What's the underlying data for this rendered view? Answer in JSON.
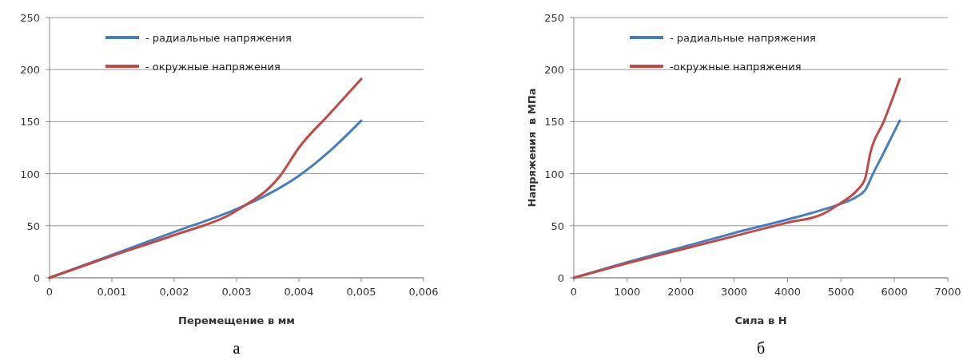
{
  "chart_data": [
    {
      "type": "line",
      "xlabel": "Перемещение в мм",
      "xlim": [
        0,
        0.006
      ],
      "xticks": [
        0,
        {
          "value": 0.001,
          "label": "0,001"
        },
        {
          "value": 0.002,
          "label": "0,002"
        },
        {
          "value": 0.003,
          "label": "0,003"
        },
        {
          "value": 0.004,
          "label": "0,004"
        },
        {
          "value": 0.005,
          "label": "0,005"
        },
        {
          "value": 0.006,
          "label": "0,006"
        }
      ],
      "ylim": [
        0,
        250
      ],
      "yticks": [
        0,
        50,
        100,
        150,
        200,
        250
      ],
      "grid": "y",
      "legend": "top left",
      "line_style": "solid",
      "annotations": [
        "а"
      ],
      "series": [
        {
          "name": "- радиальные напряжения",
          "color": "#4a7ebb",
          "x": [
            0,
            0.001,
            0.002,
            0.003,
            0.0035,
            0.004,
            0.0045,
            0.005
          ],
          "values": [
            0,
            22,
            44,
            66,
            80,
            98,
            122,
            151
          ]
        },
        {
          "name": "- окружные напряжения",
          "color": "#be4b48",
          "x": [
            0,
            0.001,
            0.002,
            0.0029,
            0.0032,
            0.0035,
            0.0037,
            0.004,
            0.0045,
            0.005
          ],
          "values": [
            0,
            21,
            41,
            61,
            72,
            85,
            98,
            125,
            158,
            191
          ]
        }
      ]
    },
    {
      "type": "line",
      "xlabel": "Сила в Н",
      "ylabel": "Напряжения  в МПа",
      "xlim": [
        0,
        7000
      ],
      "xticks": [
        0,
        1000,
        2000,
        3000,
        4000,
        5000,
        6000,
        7000
      ],
      "ylim": [
        0,
        250
      ],
      "yticks": [
        0,
        50,
        100,
        150,
        200,
        250
      ],
      "grid": "y",
      "legend": "top left",
      "line_style": "solid",
      "annotations": [
        "б"
      ],
      "series": [
        {
          "name": "- радиальные напряжения",
          "color": "#4a7ebb",
          "x": [
            0,
            1000,
            2000,
            3000,
            4000,
            4700,
            5000,
            5300,
            5450,
            5600,
            5800,
            6100
          ],
          "values": [
            0,
            15,
            29,
            43,
            56,
            66,
            71,
            78,
            84,
            100,
            120,
            151
          ]
        },
        {
          "name": "-окружные напряжения",
          "color": "#be4b48",
          "x": [
            0,
            1000,
            2000,
            3000,
            4000,
            4650,
            5000,
            5300,
            5450,
            5550,
            5800,
            6100
          ],
          "values": [
            0,
            14,
            27,
            40,
            53,
            61,
            72,
            84,
            95,
            120,
            150,
            191
          ]
        }
      ]
    }
  ]
}
